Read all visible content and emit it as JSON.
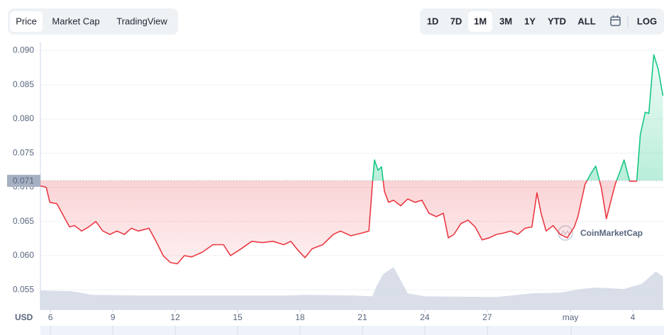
{
  "controls": {
    "tabs": [
      "Price",
      "Market Cap",
      "TradingView"
    ],
    "active_tab": 0,
    "ranges": [
      "1D",
      "7D",
      "1M",
      "3M",
      "1Y",
      "YTD",
      "ALL"
    ],
    "active_range": 2,
    "log": "LOG"
  },
  "chart_data": {
    "type": "line",
    "currency": "USD",
    "watermark": "CoinMarketCap",
    "reference": 0.071,
    "up_color": "#16c784",
    "down_color": "#ea3943",
    "x": [
      5.52,
      5.8,
      5.97,
      6.31,
      6.65,
      6.92,
      7.16,
      7.5,
      7.84,
      8.18,
      8.52,
      8.86,
      9.2,
      9.55,
      9.89,
      10.23,
      10.74,
      11.08,
      11.42,
      11.76,
      12.1,
      12.44,
      12.78,
      13.3,
      13.81,
      14.32,
      14.66,
      15.17,
      15.68,
      16.19,
      16.7,
      17.22,
      17.56,
      17.9,
      18.24,
      18.58,
      19.09,
      19.6,
      19.94,
      20.45,
      20.97,
      21.31,
      21.48,
      21.58,
      21.75,
      21.92,
      22.06,
      22.26,
      22.5,
      22.84,
      23.18,
      23.52,
      23.86,
      24.2,
      24.55,
      24.89,
      25.13,
      25.4,
      25.74,
      26.08,
      26.42,
      26.76,
      27.1,
      27.44,
      27.78,
      28.13,
      28.47,
      28.81,
      29.15,
      29.39,
      29.59,
      29.83,
      30.17,
      30.51,
      30.85,
      31.19,
      31.36,
      31.7,
      31.98,
      32.22,
      32.49,
      32.73,
      32.97,
      33.17,
      33.41,
      33.58,
      33.85,
      34.19,
      34.36,
      34.6,
      34.77,
      35.01,
      35.22,
      35.45
    ],
    "values": [
      0.0702,
      0.07,
      0.0678,
      0.0676,
      0.0657,
      0.0642,
      0.0644,
      0.0636,
      0.0642,
      0.065,
      0.0636,
      0.0631,
      0.0636,
      0.0631,
      0.064,
      0.0636,
      0.064,
      0.0621,
      0.06,
      0.059,
      0.0588,
      0.06,
      0.0598,
      0.0605,
      0.0616,
      0.0616,
      0.06,
      0.061,
      0.0621,
      0.0619,
      0.0621,
      0.0616,
      0.0621,
      0.0608,
      0.0597,
      0.061,
      0.0616,
      0.0631,
      0.0636,
      0.0629,
      0.0633,
      0.0636,
      0.0704,
      0.074,
      0.0725,
      0.073,
      0.0694,
      0.0678,
      0.0681,
      0.0673,
      0.0683,
      0.0678,
      0.0681,
      0.0662,
      0.0657,
      0.0662,
      0.0626,
      0.0631,
      0.0647,
      0.0652,
      0.0642,
      0.0623,
      0.0626,
      0.0631,
      0.0633,
      0.0636,
      0.0631,
      0.064,
      0.0642,
      0.0692,
      0.0662,
      0.0636,
      0.0644,
      0.0631,
      0.0626,
      0.0642,
      0.0657,
      0.0704,
      0.072,
      0.0731,
      0.0699,
      0.0654,
      0.0683,
      0.0706,
      0.0725,
      0.074,
      0.0709,
      0.0709,
      0.0777,
      0.081,
      0.0808,
      0.0894,
      0.0873,
      0.0834
    ],
    "volume": {
      "color": "#cfd6e4",
      "x": [
        5.52,
        6.99,
        8.01,
        10.4,
        13.81,
        17.22,
        18.24,
        20.63,
        21.48,
        21.65,
        21.99,
        22.5,
        22.84,
        23.18,
        24.03,
        27.44,
        29.15,
        30.51,
        31.53,
        32.22,
        33.58,
        34.43,
        35.11,
        35.45
      ],
      "values": [
        26,
        25,
        20,
        19,
        19,
        19,
        20,
        19,
        18,
        30,
        48,
        58,
        40,
        22,
        18,
        17,
        22,
        23,
        28,
        30,
        28,
        35,
        52,
        45
      ]
    },
    "xlim": [
      5.52,
      35.5
    ],
    "xticks": [
      6,
      9,
      12,
      15,
      18,
      21,
      24,
      27,
      {
        "value": 31,
        "label": "may"
      },
      {
        "value": 34,
        "label": "4"
      }
    ],
    "ylim": [
      0.0518,
      0.0912
    ],
    "yticks": [
      {
        "value": 0.055,
        "label": "0.055"
      },
      {
        "value": 0.06,
        "label": "0.060"
      },
      {
        "value": 0.065,
        "label": "0.065"
      },
      {
        "value": 0.07,
        "label": "0.070"
      },
      {
        "value": 0.075,
        "label": "0.075"
      },
      {
        "value": 0.08,
        "label": "0.080"
      },
      {
        "value": 0.085,
        "label": "0.085"
      },
      {
        "value": 0.09,
        "label": "0.090"
      }
    ],
    "grid": true
  }
}
